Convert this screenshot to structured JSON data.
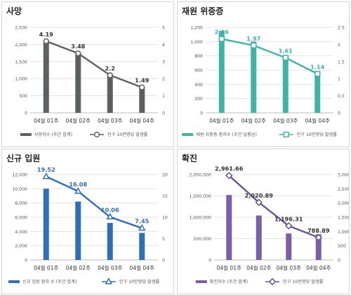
{
  "chart_data": [
    {
      "type": "bar",
      "title": "사망",
      "categories": [
        "04월 01주",
        "04월 02주",
        "04월 03주",
        "04월 04주"
      ],
      "series": [
        {
          "name": "사망자수 (주간 합계)",
          "type": "bar",
          "axis": "left",
          "values": [
            2120,
            1740,
            1140,
            750
          ]
        },
        {
          "name": "인구 10만명당 발생률",
          "type": "line",
          "axis": "right",
          "values": [
            4.19,
            3.48,
            2.2,
            1.49
          ],
          "labels": [
            "4.19",
            "3.48",
            "2.2",
            "1.49"
          ]
        }
      ],
      "ylim": [
        0,
        2500
      ],
      "yticks": [
        "0",
        "500",
        "1,000",
        "1,500",
        "2,000",
        "2,500"
      ],
      "y2lim": [
        0,
        5
      ],
      "y2ticks": [
        "0",
        "1",
        "2",
        "3",
        "4",
        "5"
      ],
      "bar_color": "#5b6063",
      "line_color": "#5b6063",
      "marker": "circle",
      "label_color": "#333333",
      "legend_position": "bottom"
    },
    {
      "type": "bar",
      "title": "재원 위중증",
      "categories": [
        "04월 01주",
        "04월 02주",
        "04월 03주",
        "04월 04주"
      ],
      "series": [
        {
          "name": "재원 위중증 환자수 (주간 일평균)",
          "type": "bar",
          "axis": "left",
          "values": [
            1150,
            1000,
            800,
            570
          ]
        },
        {
          "name": "인구 10만명당 발생률",
          "type": "line",
          "axis": "right",
          "values": [
            2.16,
            1.97,
            1.61,
            1.14
          ],
          "labels": [
            "2.16",
            "1.97",
            "1.61",
            "1.14"
          ]
        }
      ],
      "ylim": [
        0,
        1200
      ],
      "yticks": [
        "0",
        "200",
        "400",
        "600",
        "800",
        "1,000",
        "1,200"
      ],
      "y2lim": [
        0,
        2.5
      ],
      "y2ticks": [
        "0",
        "0.5",
        "1",
        "1.5",
        "2",
        "2.5"
      ],
      "bar_color": "#3fb3a8",
      "line_color": "#3fb3a8",
      "marker": "square",
      "label_color": "#3fb3a8",
      "legend_position": "bottom"
    },
    {
      "type": "bar",
      "title": "신규 입원",
      "categories": [
        "04월 01주",
        "04월 02주",
        "04월 03주",
        "04월 04주"
      ],
      "series": [
        {
          "name": "신규 입원 환자 수 (주간 합계)",
          "type": "bar",
          "axis": "left",
          "values": [
            10000,
            8200,
            5200,
            3800
          ]
        },
        {
          "name": "인구 10만명당 발생률",
          "type": "line",
          "axis": "right",
          "values": [
            19.52,
            16.08,
            10.06,
            7.45
          ],
          "labels": [
            "19.52",
            "16.08",
            "10.06",
            "7.45"
          ]
        }
      ],
      "ylim": [
        0,
        12000
      ],
      "yticks": [
        "0",
        "2,000",
        "4,000",
        "6,000",
        "8,000",
        "10,000",
        "12,000"
      ],
      "y2lim": [
        0,
        20
      ],
      "y2ticks": [
        "0",
        "5",
        "10",
        "15",
        "20"
      ],
      "bar_color": "#2f6fb7",
      "line_color": "#2f6fb7",
      "marker": "triangle",
      "label_color": "#2f6fb7",
      "legend_position": "bottom"
    },
    {
      "type": "bar",
      "title": "확진",
      "categories": [
        "04월 01주",
        "04월 02주",
        "04월 03주",
        "04월 04주"
      ],
      "series": [
        {
          "name": "확진자수 (주간 합계)",
          "type": "bar",
          "axis": "left",
          "values": [
            1520000,
            1040000,
            620000,
            600000
          ]
        },
        {
          "name": "인구 10만명당 발생률",
          "type": "line",
          "axis": "right",
          "values": [
            2961.66,
            2020.89,
            1196.31,
            788.89
          ],
          "labels": [
            "2,961.66",
            "2,020.89",
            "1,196.31",
            "788.89"
          ]
        }
      ],
      "ylim": [
        0,
        2000000
      ],
      "yticks": [
        "0",
        "500,000",
        "1,000,000",
        "1,500,000",
        "2,000,000"
      ],
      "y2lim": [
        0,
        3000
      ],
      "y2ticks": [
        "0",
        "500",
        "1,000",
        "1,500",
        "2,000",
        "2,500",
        "3,000"
      ],
      "bar_color": "#7b5ea7",
      "line_color": "#6a5494",
      "marker": "diamond",
      "label_color": "#333333",
      "legend_position": "bottom"
    }
  ]
}
